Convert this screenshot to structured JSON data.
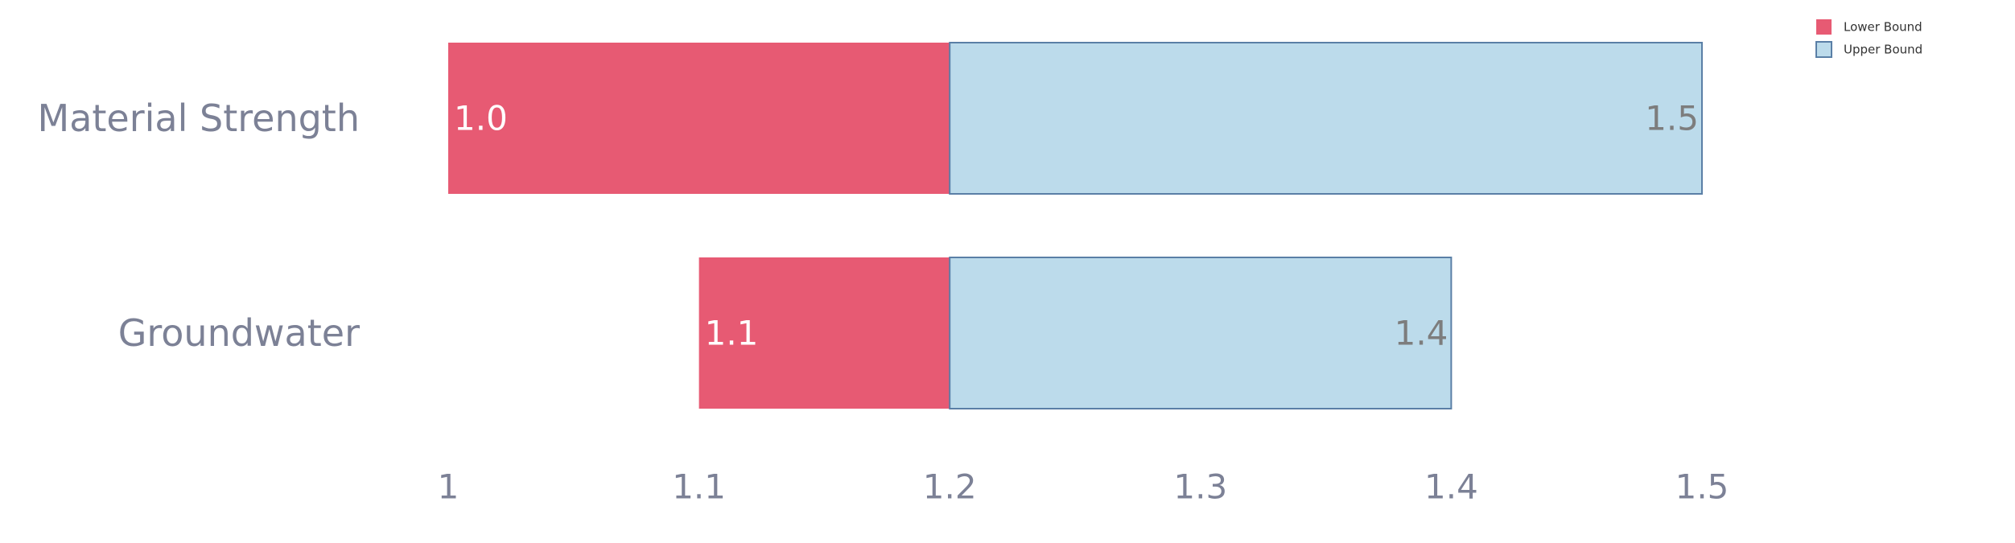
{
  "chart_data": {
    "type": "bar",
    "orientation": "horizontal",
    "layout": "range-split",
    "categories": [
      "Material Strength",
      "Groundwater"
    ],
    "series": [
      {
        "name": "Lower Bound",
        "values": [
          1.0,
          1.1
        ],
        "color": "#e75a73"
      },
      {
        "name": "Upper Bound",
        "values": [
          1.5,
          1.4
        ],
        "color": "#bcdbeb"
      }
    ],
    "center": 1.2,
    "value_labels": {
      "lower": [
        "1.0",
        "1.1"
      ],
      "upper": [
        "1.5",
        "1.4"
      ]
    },
    "xlim": [
      1,
      1.5
    ],
    "xticks": [
      1,
      1.1,
      1.2,
      1.3,
      1.4,
      1.5
    ],
    "xtick_labels": [
      "1",
      "1.1",
      "1.2",
      "1.3",
      "1.4",
      "1.5"
    ],
    "legend_position": "top-right",
    "grid": false,
    "colors": {
      "upper_stroke": "#5a7fa6",
      "axis_text": "#7c8196"
    }
  }
}
